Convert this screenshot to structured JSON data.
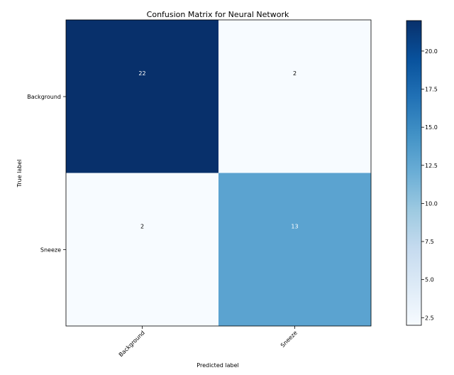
{
  "chart_data": {
    "type": "heatmap",
    "title": "Confusion Matrix for Neural Network",
    "xlabel": "Predicted label",
    "ylabel": "True label",
    "x_categories": [
      "Background",
      "Sneeze"
    ],
    "y_categories": [
      "Background",
      "Sneeze"
    ],
    "values": [
      [
        22,
        2
      ],
      [
        2,
        13
      ]
    ],
    "colormap": "Blues",
    "colorbar": {
      "min": 2,
      "max": 22,
      "ticks": [
        2.5,
        5.0,
        7.5,
        10.0,
        12.5,
        15.0,
        17.5,
        20.0
      ],
      "tick_labels": [
        "2.5",
        "5.0",
        "7.5",
        "10.0",
        "12.5",
        "15.0",
        "17.5",
        "20.0"
      ]
    },
    "annotation_colors": {
      "dark": "#ffffff",
      "light": "#000000"
    }
  }
}
